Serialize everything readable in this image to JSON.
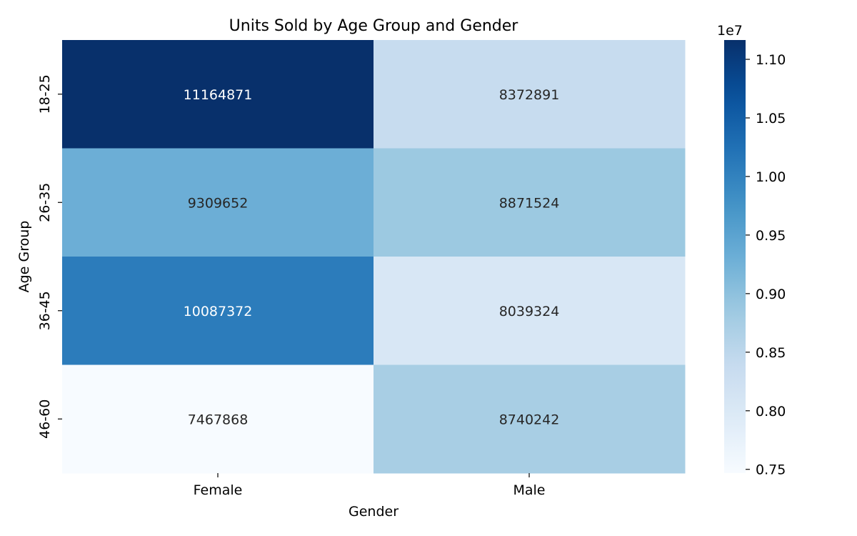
{
  "chart_data": {
    "type": "heatmap",
    "title": "Units Sold by Age Group and Gender",
    "xlabel": "Gender",
    "ylabel": "Age Group",
    "x_categories": [
      "Female",
      "Male"
    ],
    "y_categories": [
      "18-25",
      "26-35",
      "36-45",
      "46-60"
    ],
    "values": [
      [
        11164871,
        8372891
      ],
      [
        9309652,
        8871524
      ],
      [
        10087372,
        8039324
      ],
      [
        7467868,
        8740242
      ]
    ],
    "colorscale": "Blues",
    "colorbar": {
      "range": [
        7467868,
        11164871
      ],
      "ticks": [
        0.75,
        0.8,
        0.85,
        0.9,
        0.95,
        1.0,
        1.05,
        1.1
      ],
      "tick_labels": [
        "0.75",
        "0.80",
        "0.85",
        "0.90",
        "0.95",
        "1.00",
        "1.05",
        "1.10"
      ],
      "multiplier": 10000000,
      "multiplier_label": "1e7"
    },
    "annotation_colors": {
      "dark_cell": "#ffffff",
      "light_cell": "#262626"
    }
  }
}
